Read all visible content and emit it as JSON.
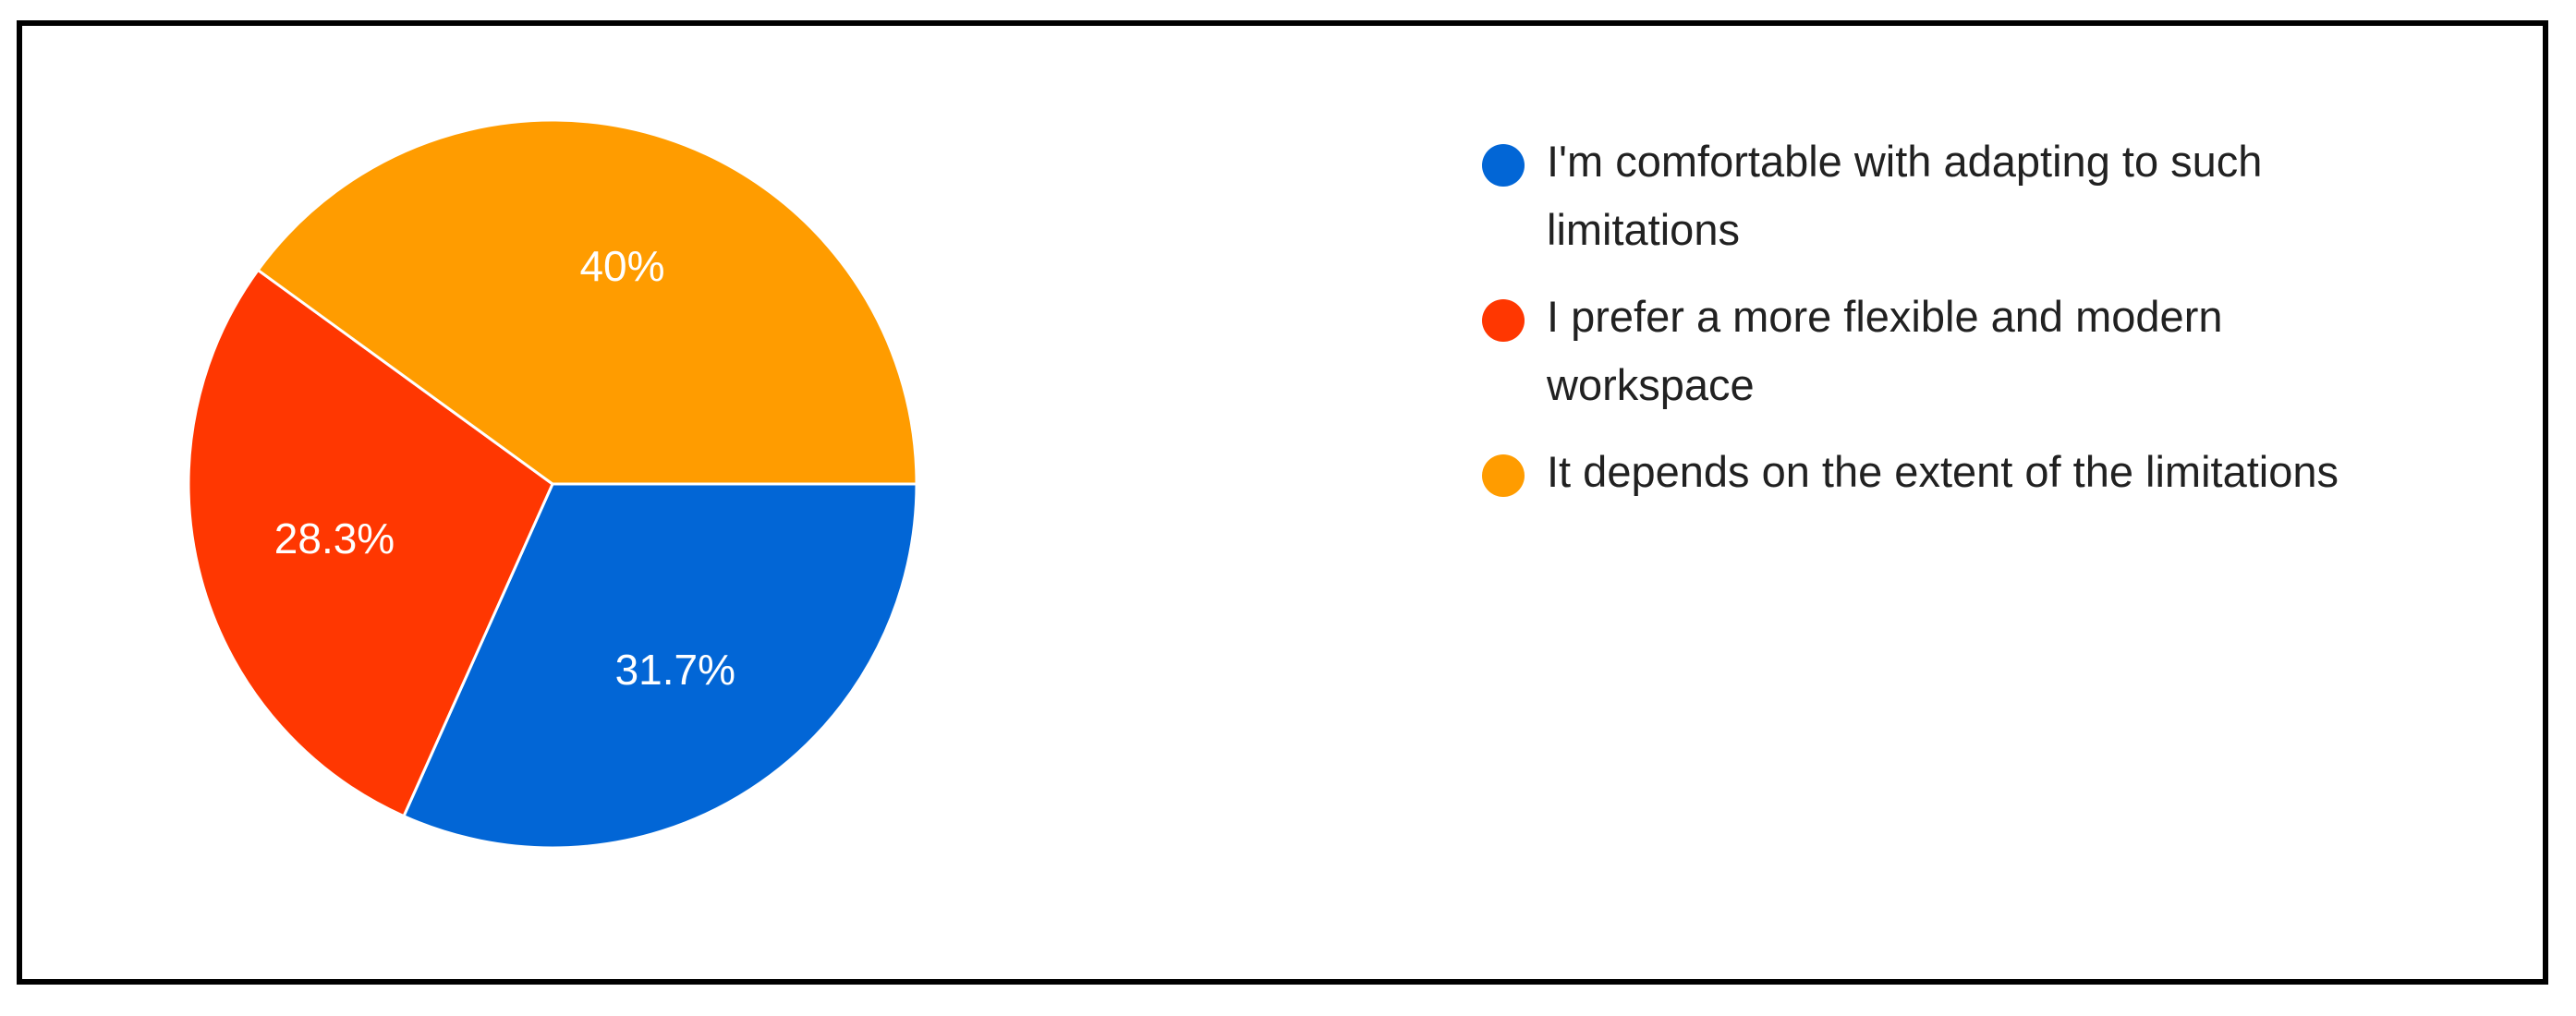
{
  "chart_data": {
    "type": "pie",
    "slices": [
      {
        "label": "I'm comfortable with adapting to such limitations",
        "value": 31.7,
        "value_label": "31.7%",
        "color": "#0266D6"
      },
      {
        "label": "I prefer a more flexible and modern workspace",
        "value": 28.3,
        "value_label": "28.3%",
        "color": "#FF3701"
      },
      {
        "label": "It depends on the extent of the limitations",
        "value": 40,
        "value_label": "40%",
        "color": "#FF9C00"
      }
    ],
    "legend_placement": "right",
    "title": ""
  },
  "legend": {
    "items": [
      {
        "label": "I'm comfortable with adapting to such limitations",
        "color": "#0266D6"
      },
      {
        "label": "I prefer a more flexible and modern workspace",
        "color": "#FF3701"
      },
      {
        "label": "It depends on the extent of the limitations",
        "color": "#FF9C00"
      }
    ]
  }
}
